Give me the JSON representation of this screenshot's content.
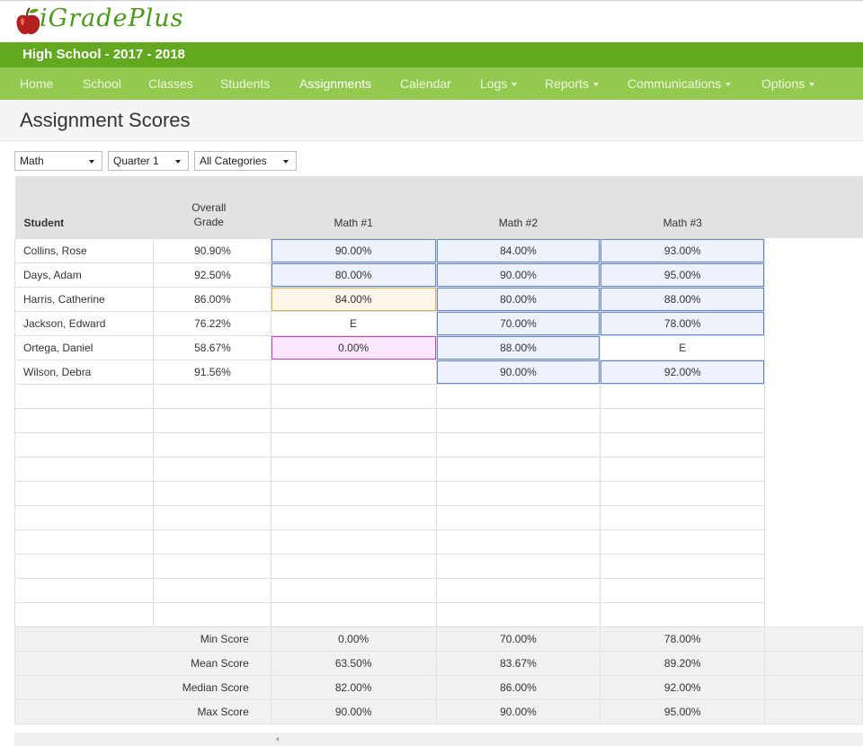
{
  "header": {
    "logo": "iGradePlus",
    "school": "High School - 2017 - 2018"
  },
  "nav": [
    "Home",
    "School",
    "Classes",
    "Students",
    "Assignments",
    "Calendar",
    "Logs",
    "Reports",
    "Communications",
    "Options"
  ],
  "page_title": "Assignment Scores",
  "filters": [
    "Math",
    "Quarter 1",
    "All Categories"
  ],
  "table": {
    "columns": [
      "Student",
      "Overall Grade",
      "Math #1",
      "Math #2",
      "Math #3"
    ],
    "rows": [
      {
        "student": "Collins, Rose",
        "overall": "90.90%",
        "scores": [
          "90.00%",
          "84.00%",
          "93.00%"
        ]
      },
      {
        "student": "Days, Adam",
        "overall": "92.50%",
        "scores": [
          "80.00%",
          "90.00%",
          "95.00%"
        ]
      },
      {
        "student": "Harris, Catherine",
        "overall": "86.00%",
        "scores": [
          "84.00%",
          "80.00%",
          "88.00%"
        ]
      },
      {
        "student": "Jackson, Edward",
        "overall": "76.22%",
        "scores": [
          "E",
          "70.00%",
          "78.00%"
        ]
      },
      {
        "student": "Ortega, Daniel",
        "overall": "58.67%",
        "scores": [
          "0.00%",
          "88.00%",
          "E"
        ]
      },
      {
        "student": "Wilson, Debra",
        "overall": "91.56%",
        "scores": [
          null,
          "90.00%",
          "92.00%"
        ]
      }
    ],
    "summary": [
      {
        "label": "Min Score",
        "values": [
          "0.00%",
          "70.00%",
          "78.00%"
        ]
      },
      {
        "label": "Mean Score",
        "values": [
          "63.50%",
          "83.67%",
          "89.20%"
        ]
      },
      {
        "label": "Median Score",
        "values": [
          "82.00%",
          "86.00%",
          "92.00%"
        ]
      },
      {
        "label": "Max Score",
        "values": [
          "90.00%",
          "90.00%",
          "95.00%"
        ]
      }
    ]
  }
}
